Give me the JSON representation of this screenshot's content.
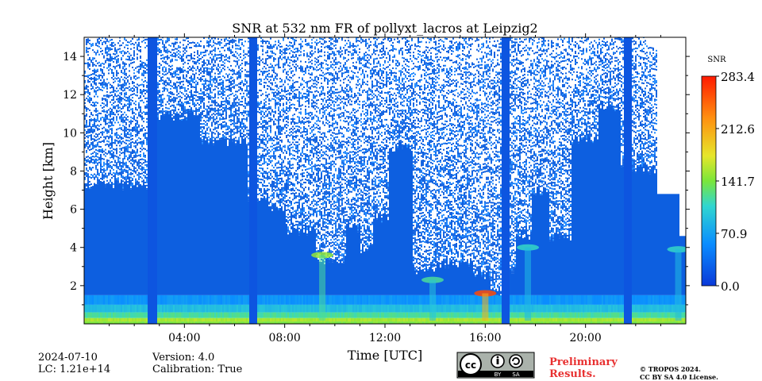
{
  "chart_data": {
    "type": "heatmap",
    "title": "SNR at 532 nm FR of pollyxt_lacros at Leipzig2",
    "xlabel": "Time [UTC]",
    "ylabel": "Height [km]",
    "x_range_hours": [
      0,
      24
    ],
    "y_range_km": [
      0,
      15
    ],
    "x_ticks": [
      {
        "hour": 4,
        "label": "04:00"
      },
      {
        "hour": 8,
        "label": "08:00"
      },
      {
        "hour": 12,
        "label": "12:00"
      },
      {
        "hour": 16,
        "label": "16:00"
      },
      {
        "hour": 20,
        "label": "20:00"
      }
    ],
    "y_ticks": [
      {
        "km": 2,
        "label": "2"
      },
      {
        "km": 4,
        "label": "4"
      },
      {
        "km": 6,
        "label": "6"
      },
      {
        "km": 8,
        "label": "8"
      },
      {
        "km": 10,
        "label": "10"
      },
      {
        "km": 12,
        "label": "12"
      },
      {
        "km": 14,
        "label": "14"
      }
    ],
    "colorbar": {
      "label": "SNR",
      "min": 0.0,
      "max": 283.4,
      "ticks": [
        {
          "value": 0.0,
          "label": "0.0"
        },
        {
          "value": 70.9,
          "label": "70.9"
        },
        {
          "value": 141.7,
          "label": "141.7"
        },
        {
          "value": 212.6,
          "label": "212.6"
        },
        {
          "value": 283.4,
          "label": "283.4"
        }
      ]
    },
    "gaps_hours": [
      {
        "start": 2.52,
        "end": 2.85
      },
      {
        "start": 6.55,
        "end": 6.9
      },
      {
        "start": 16.6,
        "end": 16.95
      },
      {
        "start": 21.5,
        "end": 21.82
      }
    ],
    "clouds": [
      {
        "t": 9.5,
        "h": 3.6,
        "snr": 150
      },
      {
        "t": 16.0,
        "h": 1.6,
        "snr": 260
      },
      {
        "t": 13.9,
        "h": 2.3,
        "snr": 120
      },
      {
        "t": 17.7,
        "h": 4.0,
        "snr": 110
      },
      {
        "t": 23.7,
        "h": 3.9,
        "snr": 110
      }
    ]
  },
  "info": {
    "date": "2024-07-10",
    "lc": "LC: 1.21e+14",
    "version": "Version: 4.0",
    "calibration": "Calibration: True"
  },
  "license": {
    "cc": "cc",
    "by": "BY",
    "sa": "SA",
    "preliminary_line1": "Preliminary",
    "preliminary_line2": "Results.",
    "copyright_line1": "© TROPOS 2024.",
    "copyright_line2": "CC BY SA 4.0 License."
  },
  "colors": {
    "background_signal": "#0d5fe0",
    "low_noise": "#1e88ff",
    "boundary_layer": "#58d8a8",
    "max": "#ff2000"
  }
}
